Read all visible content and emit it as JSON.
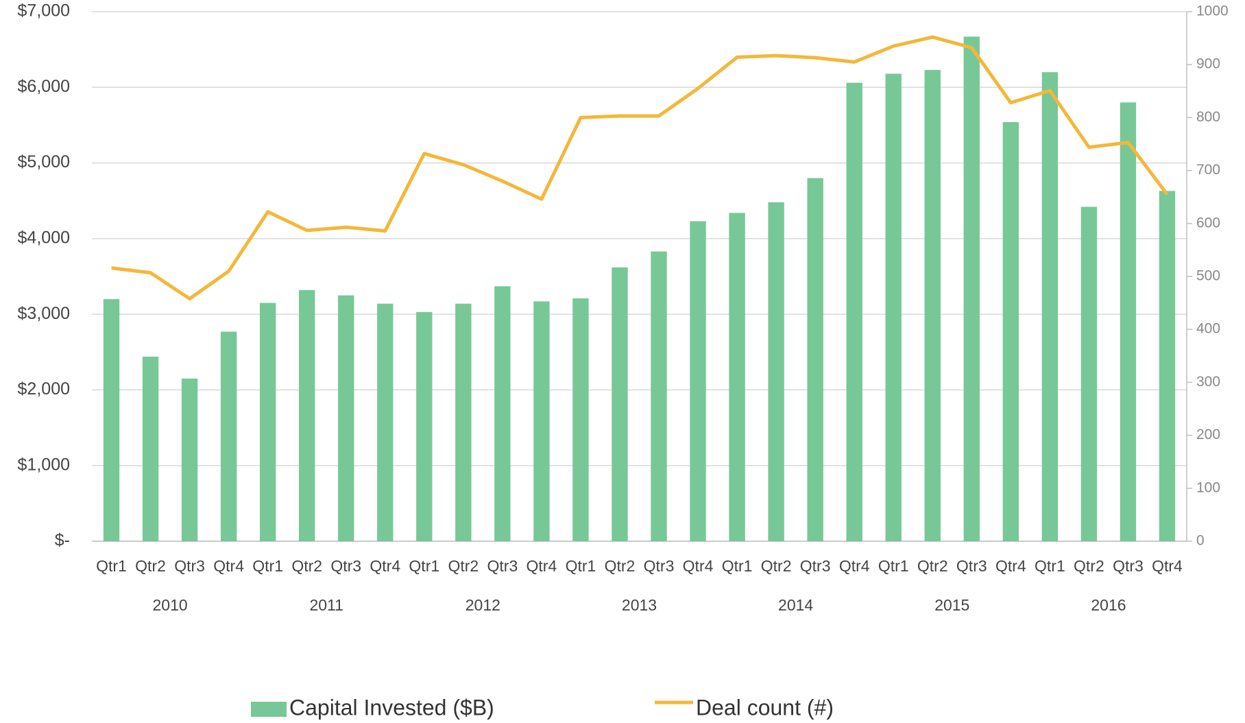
{
  "chart_data": {
    "type": "bar_line",
    "categories": [
      "Qtr1",
      "Qtr2",
      "Qtr3",
      "Qtr4",
      "Qtr1",
      "Qtr2",
      "Qtr3",
      "Qtr4",
      "Qtr1",
      "Qtr2",
      "Qtr3",
      "Qtr4",
      "Qtr1",
      "Qtr2",
      "Qtr3",
      "Qtr4",
      "Qtr1",
      "Qtr2",
      "Qtr3",
      "Qtr4",
      "Qtr1",
      "Qtr2",
      "Qtr3",
      "Qtr4",
      "Qtr1",
      "Qtr2",
      "Qtr3",
      "Qtr4"
    ],
    "groups": [
      "2010",
      "2011",
      "2012",
      "2013",
      "2014",
      "2015",
      "2016"
    ],
    "series": [
      {
        "name": "Capital Invested ($B)",
        "type": "bar",
        "color": "#77c896",
        "values": [
          3200,
          2440,
          2150,
          2770,
          3150,
          3320,
          3250,
          3140,
          3030,
          3140,
          3370,
          3170,
          3210,
          3620,
          3830,
          4230,
          4340,
          4480,
          4800,
          6060,
          6180,
          6230,
          6670,
          5540,
          6200,
          4420,
          5800,
          4630
        ]
      },
      {
        "name": "Deal count (#)",
        "type": "line",
        "axis": "y2",
        "color": "#f4b73b",
        "values": [
          516,
          507,
          458,
          510,
          622,
          587,
          593,
          586,
          732,
          711,
          680,
          646,
          800,
          803,
          803,
          855,
          914,
          917,
          913,
          905,
          935,
          952,
          932,
          828,
          851,
          744,
          753,
          655
        ]
      }
    ],
    "ylim": [
      0,
      7000
    ],
    "yticks": [
      {
        "value": 0,
        "label": "$-"
      },
      {
        "value": 1000,
        "label": "$1,000"
      },
      {
        "value": 2000,
        "label": "$2,000"
      },
      {
        "value": 3000,
        "label": "$3,000"
      },
      {
        "value": 4000,
        "label": "$4,000"
      },
      {
        "value": 5000,
        "label": "$5,000"
      },
      {
        "value": 6000,
        "label": "$6,000"
      },
      {
        "value": 7000,
        "label": "$7,000"
      }
    ],
    "y2lim": [
      0,
      1000
    ],
    "y2ticks": [
      0,
      100,
      200,
      300,
      400,
      500,
      600,
      700,
      800,
      900,
      1000
    ],
    "grid": true
  }
}
